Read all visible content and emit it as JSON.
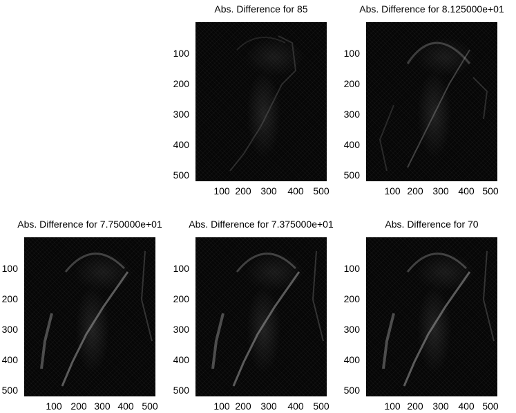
{
  "figure": {
    "panels": [
      {
        "id": "p1",
        "title": "Abs. Difference for 85"
      },
      {
        "id": "p2",
        "title": "Abs. Difference for 8.125000e+01"
      },
      {
        "id": "p3",
        "title": "Abs. Difference for 7.750000e+01"
      },
      {
        "id": "p4",
        "title": "Abs. Difference for 7.375000e+01"
      },
      {
        "id": "p5",
        "title": "Abs. Difference for 70"
      }
    ],
    "y_ticks": [
      "100",
      "200",
      "300",
      "400",
      "500"
    ],
    "x_ticks": [
      "100",
      "200",
      "300",
      "400",
      "500"
    ],
    "background_color": "#ffffff",
    "image_color": "#060606"
  }
}
